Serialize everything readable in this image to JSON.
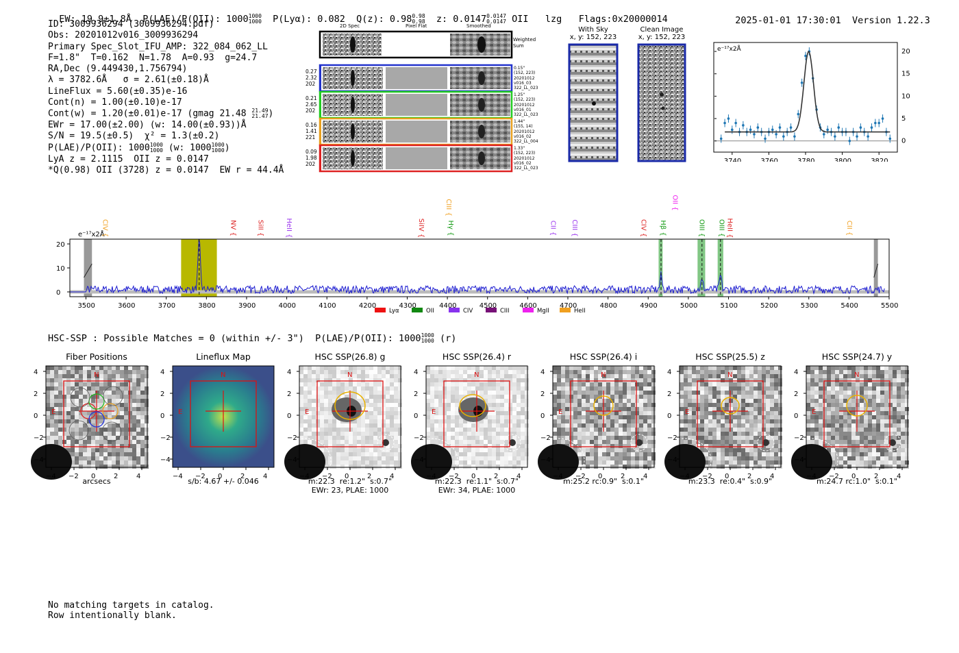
{
  "header": {
    "ew": "EW: 19.9±1.8Å",
    "plae": "P(LAE)/P(OII): 1000",
    "plae_hi": "1000",
    "plae_lo": "1000",
    "plya": "P(Lyα): 0.082",
    "qz": "Q(z): 0.98",
    "qz_hi": "0.98",
    "qz_lo": "0.98",
    "z": "z: 0.0147",
    "z_hi": "0.0147",
    "z_lo": "0.0147",
    "z_line": "OII",
    "tag": "lzg",
    "flags": "Flags:0x20000014",
    "timestamp": "2025-01-01 17:30:01",
    "version": "Version 1.22.3"
  },
  "info": {
    "id": "ID: 3009936294 (3009936294.pdf)",
    "obs": "Obs: 20201012v016_3009936294",
    "slot": "Primary Spec_Slot_IFU_AMP: 322_084_062_LL",
    "params": "F=1.8\"  T=0.162  N=1.78  A=0.93  g=24.7",
    "radec": "RA,Dec (9.449430,1.756794)",
    "lambda": "λ = 3782.6Å   σ = 2.61(±0.18)Å",
    "lineflux": "LineFlux = 5.60(±0.35)e-16",
    "contn": "Cont(n) = 1.00(±0.10)e-17",
    "contw": "Cont(w) = 1.20(±0.01)e-17 (gmag 21.48",
    "contw_hi": "21.49",
    "contw_lo": "21.47",
    "ewr": "EWr = 17.00(±2.00) (w: 14.00(±0.93))Å",
    "sn": "S/N = 19.5(±0.5)  χ² = 1.3(±0.2)",
    "plae": "P(LAE)/P(OII): 1000",
    "plae_hi": "1000",
    "plae_lo": "1000",
    "plae_w": "(w: 1000",
    "plae_w_hi": "1000",
    "plae_w_lo": "1000",
    "lya": "LyA z = 2.1115  OII z = 0.0147",
    "q": "*Q(0.98) OII (3728) z = 0.0147  EW r = 44.4Å"
  },
  "spec2d": {
    "col_labels": [
      "2D Spec",
      "Pixel Flat",
      "Smoothed"
    ],
    "weighted_label": "Weighted Sum",
    "rows": [
      {
        "left": [
          "0.27",
          "2.32",
          "202"
        ],
        "right": [
          "0.15\"",
          "(152, 223)",
          "20201012",
          "v016_03",
          "322_LL_023"
        ],
        "color": "#2233cc"
      },
      {
        "left": [
          "0.21",
          "2.65",
          "202"
        ],
        "right": [
          "1.25\"",
          "(152, 223)",
          "20201012",
          "v016_01",
          "322_LL_023"
        ],
        "color": "#22cc22"
      },
      {
        "left": [
          "0.16",
          "1.41",
          "221"
        ],
        "right": [
          "1.44\"",
          "(155, 14)",
          "20201012",
          "v016_02",
          "322_LL_004"
        ],
        "color": "#e8a020"
      },
      {
        "left": [
          "0.09",
          "1.98",
          "202"
        ],
        "right": [
          "1.33\"",
          "(152, 223)",
          "20201012",
          "v016_02",
          "322_LL_023"
        ],
        "color": "#dd2222"
      }
    ]
  },
  "cutouts": {
    "with_sky_title": "With Sky",
    "with_sky_xy": "x, y: 152, 223",
    "clean_title": "Clean Image",
    "clean_xy": "x, y: 152, 223"
  },
  "zoom_chart": {
    "ylabel": "e⁻¹⁷x2Å",
    "y_ticks": [
      "20",
      "15",
      "10",
      "5",
      "0"
    ],
    "x_ticks": [
      "3740",
      "3760",
      "3780",
      "3800",
      "3820"
    ]
  },
  "full_spectrum": {
    "ylabel": "e⁻¹⁷x2Å",
    "y_ticks": [
      "20",
      "10",
      "0"
    ],
    "x_ticks": [
      "3500",
      "3600",
      "3700",
      "3800",
      "3900",
      "4000",
      "4100",
      "4200",
      "4300",
      "4400",
      "4500",
      "4600",
      "4700",
      "4800",
      "4900",
      "5000",
      "5100",
      "5200",
      "5300",
      "5400",
      "5500"
    ],
    "lines": [
      {
        "label": "CIV",
        "color": "#f0a020"
      },
      {
        "label": "NV",
        "color": "#dd2222"
      },
      {
        "label": "SiII",
        "color": "#dd2222"
      },
      {
        "label": "HeII",
        "color": "#9933ee"
      },
      {
        "label": "SiIV",
        "color": "#dd2222"
      },
      {
        "label": "CIII",
        "color": "#f0a020"
      },
      {
        "label": "Hγ",
        "color": "#119911"
      },
      {
        "label": "CII",
        "color": "#9933ee"
      },
      {
        "label": "CIII",
        "color": "#9933ee"
      },
      {
        "label": "CIV",
        "color": "#dd2222"
      },
      {
        "label": "Hβ",
        "color": "#119911"
      },
      {
        "label": "OII",
        "color": "#ee22ee"
      },
      {
        "label": "OIII",
        "color": "#119911"
      },
      {
        "label": "OIII",
        "color": "#119911"
      },
      {
        "label": "HeII",
        "color": "#dd2222"
      },
      {
        "label": "CII",
        "color": "#f0a020"
      }
    ],
    "legend": [
      {
        "label": "Lyα",
        "color": "#ee1111"
      },
      {
        "label": "OII",
        "color": "#118811"
      },
      {
        "label": "CIV",
        "color": "#8833ee"
      },
      {
        "label": "CIII",
        "color": "#771177"
      },
      {
        "label": "MgII",
        "color": "#ee22ee"
      },
      {
        "label": "HeII",
        "color": "#f0a020"
      }
    ]
  },
  "hsc": {
    "summary": "HSC-SSP : Possible Matches = 0 (within +/- 3\")  P(LAE)/P(OII): 1000",
    "summary_hi": "1000",
    "summary_lo": "1000",
    "summary_band": "(r)",
    "axis_ticks_y": [
      "4",
      "2",
      "0",
      "−2",
      "−4"
    ],
    "axis_ticks_x": [
      "−4",
      "−2",
      "0",
      "2",
      "4"
    ],
    "compass_n": "N",
    "compass_e": "E",
    "panels": [
      {
        "title": "Fiber Positions",
        "cap1": "arcsecs",
        "cap2": ""
      },
      {
        "title": "Lineflux Map",
        "cap1": "s/b: 4.67 +/- 0.046",
        "cap2": ""
      },
      {
        "title": "HSC SSP(26.8) g",
        "cap1": "m:22.3  re:1.2\"  s:0.7\"",
        "cap2": "EWr: 23, PLAE: 1000"
      },
      {
        "title": "HSC SSP(26.4) r",
        "cap1": "m:22.3  re:1.1\"  s:0.7\"",
        "cap2": "EWr: 34, PLAE: 1000"
      },
      {
        "title": "HSC SSP(26.4) i",
        "cap1": "m:25.2 rc:0.9\"  s:0.1\"",
        "cap2": ""
      },
      {
        "title": "HSC SSP(25.5) z",
        "cap1": "m:23.3  re:0.4\"  s:0.9\"",
        "cap2": ""
      },
      {
        "title": "HSC SSP(24.7) y",
        "cap1": "m:24.7 rc:1.0\"  s:0.1\"",
        "cap2": ""
      }
    ]
  },
  "footer": {
    "line1": "No matching targets in catalog.",
    "line2": "Row intentionally blank."
  }
}
